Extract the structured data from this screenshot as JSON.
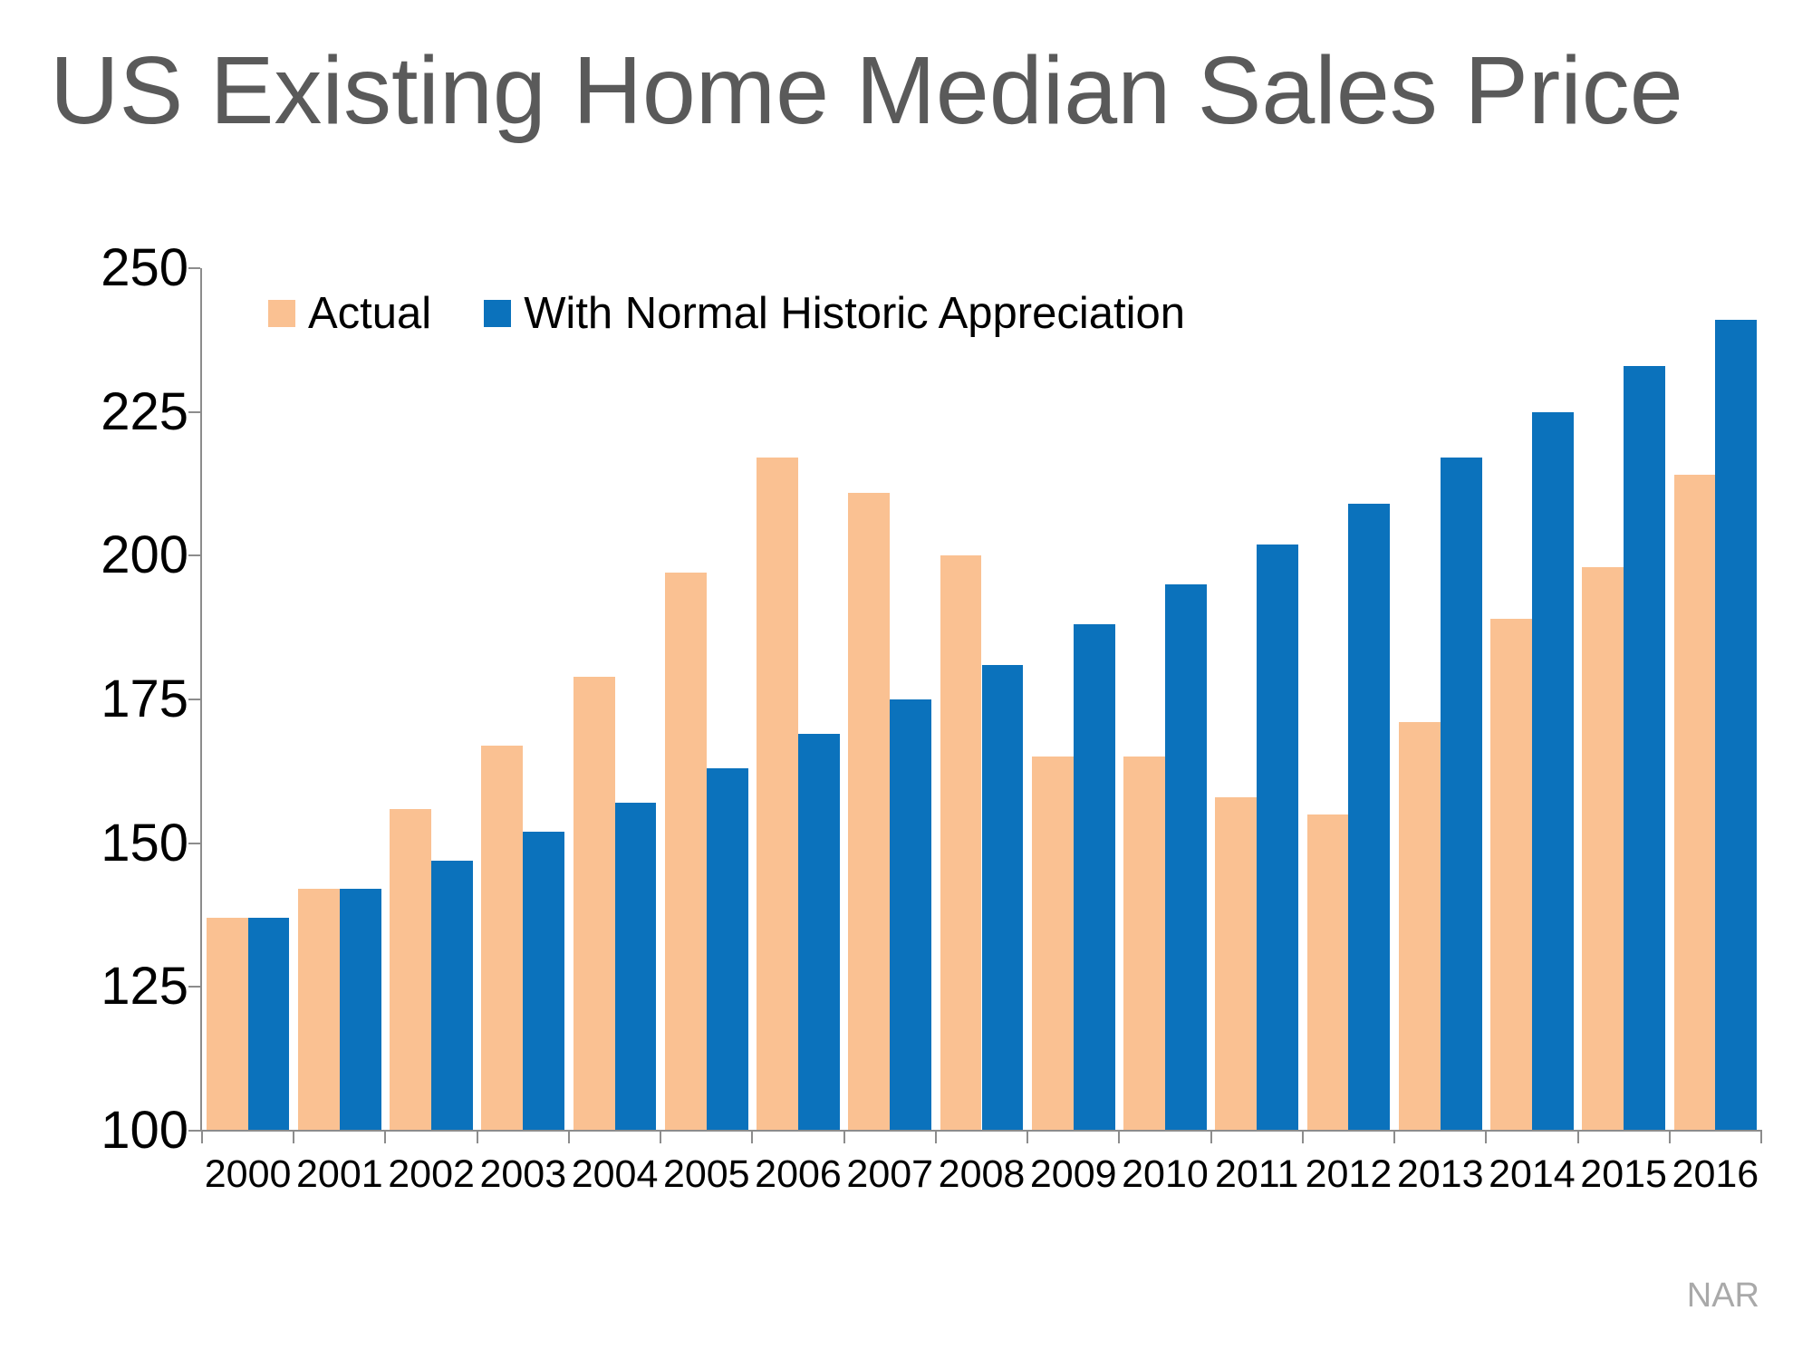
{
  "title": "US Existing Home Median Sales Price",
  "source": "NAR",
  "colors": {
    "actual": "#FAC192",
    "normal": "#0B72BC",
    "axis": "#8C8C8C",
    "title_text": "#5A5A5A",
    "tick_text": "#000000",
    "source_text": "#A9A9A9"
  },
  "legend": {
    "items": [
      {
        "label": "Actual",
        "series_key": "actual"
      },
      {
        "label": "With Normal Historic Appreciation",
        "series_key": "normal"
      }
    ]
  },
  "chart_data": {
    "type": "bar",
    "title": "US Existing Home Median Sales Price",
    "categories": [
      "2000",
      "2001",
      "2002",
      "2003",
      "2004",
      "2005",
      "2006",
      "2007",
      "2008",
      "2009",
      "2010",
      "2011",
      "2012",
      "2013",
      "2014",
      "2015",
      "2016"
    ],
    "series": [
      {
        "name": "Actual",
        "key": "actual",
        "values": [
          137,
          142,
          156,
          167,
          179,
          197,
          217,
          211,
          200,
          165,
          165,
          158,
          155,
          171,
          189,
          198,
          214
        ]
      },
      {
        "name": "With Normal Historic Appreciation",
        "key": "normal",
        "values": [
          137,
          142,
          147,
          152,
          157,
          163,
          169,
          175,
          181,
          188,
          195,
          202,
          209,
          217,
          225,
          233,
          241
        ]
      }
    ],
    "xlabel": "",
    "ylabel": "",
    "ylim": [
      100,
      250
    ],
    "yticks": [
      100,
      125,
      150,
      175,
      200,
      225,
      250
    ],
    "grid": false,
    "legend_position": "top-left-inside",
    "source": "NAR"
  }
}
